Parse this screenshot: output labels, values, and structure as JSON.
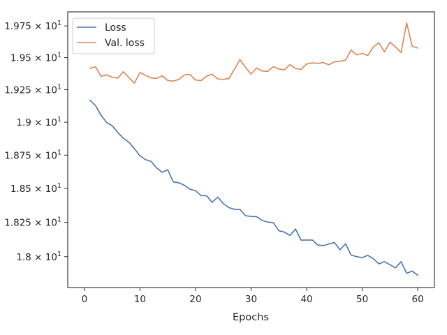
{
  "chart_data": {
    "type": "line",
    "title": "",
    "xlabel": "Epochs",
    "ylabel": "",
    "x": [
      1,
      2,
      3,
      4,
      5,
      6,
      7,
      8,
      9,
      10,
      11,
      12,
      13,
      14,
      15,
      16,
      17,
      18,
      19,
      20,
      21,
      22,
      23,
      24,
      25,
      26,
      27,
      28,
      29,
      30,
      31,
      32,
      33,
      34,
      35,
      36,
      37,
      38,
      39,
      40,
      41,
      42,
      43,
      44,
      45,
      46,
      47,
      48,
      49,
      50,
      51,
      52,
      53,
      54,
      55,
      56,
      57,
      58,
      59,
      60
    ],
    "series": [
      {
        "name": "Loss",
        "color": "#4c72b0",
        "values": [
          19.168,
          19.128,
          19.053,
          18.998,
          18.973,
          18.922,
          18.878,
          18.848,
          18.799,
          18.745,
          18.716,
          18.703,
          18.654,
          18.621,
          18.64,
          18.549,
          18.543,
          18.524,
          18.495,
          18.484,
          18.448,
          18.446,
          18.398,
          18.437,
          18.388,
          18.359,
          18.346,
          18.345,
          18.299,
          18.294,
          18.292,
          18.264,
          18.252,
          18.248,
          18.189,
          18.179,
          18.154,
          18.201,
          18.12,
          18.121,
          18.121,
          18.085,
          18.08,
          18.092,
          18.103,
          18.05,
          18.093,
          18.012,
          18.0,
          17.993,
          18.01,
          17.986,
          17.948,
          17.964,
          17.942,
          17.919,
          17.964,
          17.88,
          17.896,
          17.866
        ]
      },
      {
        "name": "Val. loss",
        "color": "#dd8452",
        "values": [
          19.416,
          19.428,
          19.354,
          19.365,
          19.347,
          19.339,
          19.39,
          19.345,
          19.3,
          19.384,
          19.362,
          19.342,
          19.337,
          19.358,
          19.321,
          19.317,
          19.329,
          19.366,
          19.368,
          19.325,
          19.321,
          19.355,
          19.37,
          19.334,
          19.33,
          19.337,
          19.409,
          19.484,
          19.424,
          19.372,
          19.419,
          19.395,
          19.392,
          19.429,
          19.411,
          19.404,
          19.446,
          19.415,
          19.408,
          19.45,
          19.459,
          19.455,
          19.461,
          19.444,
          19.467,
          19.472,
          19.479,
          19.56,
          19.521,
          19.533,
          19.516,
          19.583,
          19.617,
          19.545,
          19.621,
          19.583,
          19.54,
          19.774,
          19.59,
          19.575
        ]
      }
    ],
    "xlim": [
      -3.0,
      63.0
    ],
    "ylim": [
      17.778,
      19.862
    ],
    "xticks": [
      0,
      10,
      20,
      30,
      40,
      50,
      60
    ],
    "xtick_labels": [
      "0",
      "10",
      "20",
      "30",
      "40",
      "50",
      "60"
    ],
    "yticks": [
      18.0,
      18.25,
      18.5,
      18.75,
      19.0,
      19.25,
      19.5,
      19.75
    ],
    "ytick_labels": [
      {
        "mantissa": "1.8 × 10",
        "exp": "1"
      },
      {
        "mantissa": "1.825 × 10",
        "exp": "1"
      },
      {
        "mantissa": "1.85 × 10",
        "exp": "1"
      },
      {
        "mantissa": "1.875 × 10",
        "exp": "1"
      },
      {
        "mantissa": "1.9 × 10",
        "exp": "1"
      },
      {
        "mantissa": "1.925 × 10",
        "exp": "1"
      },
      {
        "mantissa": "1.95 × 10",
        "exp": "1"
      },
      {
        "mantissa": "1.975 × 10",
        "exp": "1"
      }
    ],
    "y_scale": "log",
    "grid": false,
    "legend": {
      "position": "top-left",
      "entries": [
        "Loss",
        "Val. loss"
      ]
    }
  }
}
